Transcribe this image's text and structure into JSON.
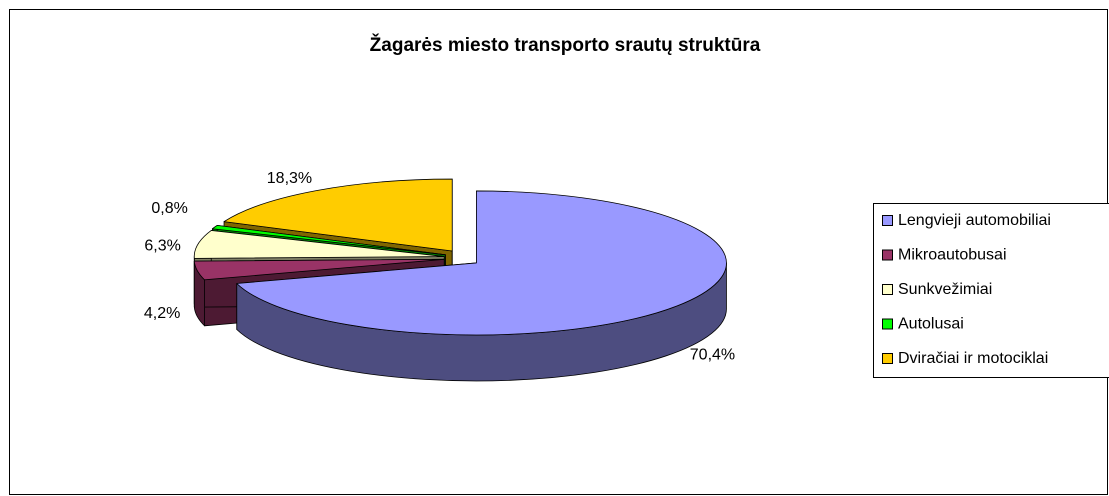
{
  "chart_data": {
    "type": "pie",
    "title": "Žagarės miesto transporto srautų struktūra",
    "categories": [
      "Lengvieji automobiliai",
      "Mikroautobusai",
      "Sunkvežimiai",
      "Autolusai",
      "Dviračiai ir motociklai"
    ],
    "values": [
      70.4,
      4.2,
      6.3,
      0.8,
      18.3
    ],
    "value_labels": [
      "70,4%",
      "4,2%",
      "6,3%",
      "0,8%",
      "18,3%"
    ],
    "colors": [
      "#9999ff",
      "#993366",
      "#ffffcc",
      "#00ff00",
      "#ffcc00"
    ],
    "legend": "right"
  }
}
